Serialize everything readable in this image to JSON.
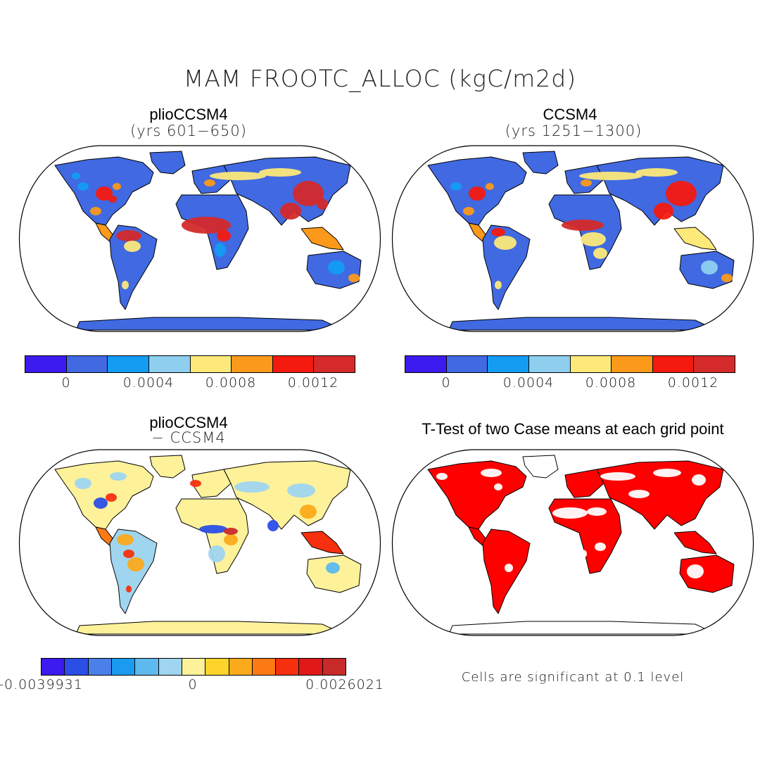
{
  "figure": {
    "title": "MAM FROOTC_ALLOC (kgC/m2d)"
  },
  "panels": [
    {
      "title": "plioCCSM4",
      "subtitle": "(yrs 601−650)",
      "colorbar": {
        "colors": [
          "#3b1bf0",
          "#4169e1",
          "#139cf2",
          "#8ecff0",
          "#fce979",
          "#fb9a1a",
          "#f51a10",
          "#d42a2a"
        ],
        "ticks": [
          "0",
          "0.0004",
          "0.0008",
          "0.0012"
        ]
      }
    },
    {
      "title": "CCSM4",
      "subtitle": "(yrs 1251−1300)",
      "colorbar": {
        "colors": [
          "#3b1bf0",
          "#4169e1",
          "#139cf2",
          "#8ecff0",
          "#fce979",
          "#fb9a1a",
          "#f51a10",
          "#d42a2a"
        ],
        "ticks": [
          "0",
          "0.0004",
          "0.0008",
          "0.0012"
        ]
      }
    },
    {
      "title": "plioCCSM4",
      "subtitle": "− CCSM4",
      "colorbar": {
        "colors": [
          "#3b1bf0",
          "#2b4ee6",
          "#4a80e8",
          "#1a9bf0",
          "#5db9ee",
          "#9fd5ef",
          "#fdf19a",
          "#fcd42a",
          "#fbaa1a",
          "#fb7a14",
          "#f6300e",
          "#e01818",
          "#c82a2a"
        ],
        "ticks": [
          "-0.0039931",
          "0",
          "0.0026021"
        ]
      }
    },
    {
      "title": "T-Test of two Case means at each grid point",
      "note": "Cells are significant at 0.1 level"
    }
  ]
}
